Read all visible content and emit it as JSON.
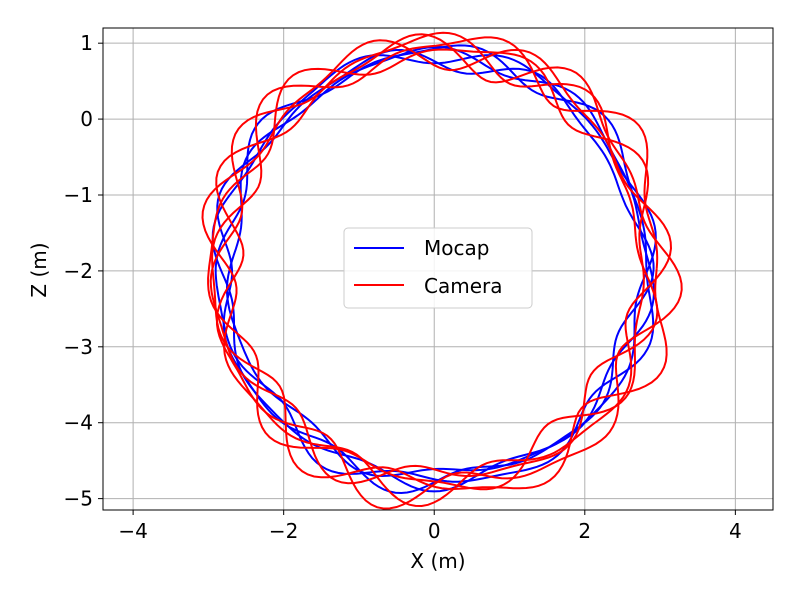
{
  "chart_data": {
    "type": "line",
    "title": "",
    "xlabel": "X (m)",
    "ylabel": "Z (m)",
    "xlim": [
      -4.4,
      4.5
    ],
    "ylim": [
      -5.15,
      1.2
    ],
    "xticks": [
      -4,
      -2,
      0,
      2,
      4
    ],
    "yticks": [
      1,
      0,
      -1,
      -2,
      -3,
      -4,
      -5
    ],
    "xtick_labels": [
      "−4",
      "−2",
      "0",
      "2",
      "4"
    ],
    "ytick_labels": [
      "1",
      "0",
      "−1",
      "−2",
      "−3",
      "−4",
      "−5"
    ],
    "grid": true,
    "legend_position": "center",
    "colors": {
      "Mocap": "#0000ff",
      "Camera": "#ff0000"
    },
    "series": [
      {
        "name": "Mocap",
        "color": "#0000ff",
        "loops": [
          {
            "cx": 0.0,
            "cz": -1.95,
            "rx": 2.85,
            "rz": 2.82,
            "wobble": 0.03,
            "phase": 0.0
          },
          {
            "cx": -0.05,
            "cz": -1.98,
            "rx": 2.8,
            "rz": 2.8,
            "wobble": 0.04,
            "phase": 1.1
          },
          {
            "cx": 0.05,
            "cz": -1.92,
            "rx": 2.78,
            "rz": 2.78,
            "wobble": 0.03,
            "phase": 2.3
          },
          {
            "cx": 0.02,
            "cz": -1.96,
            "rx": 2.86,
            "rz": 2.84,
            "wobble": 0.04,
            "phase": 3.4
          }
        ]
      },
      {
        "name": "Camera",
        "color": "#ff0000",
        "loops": [
          {
            "cx": 0.0,
            "cz": -1.95,
            "rx": 2.9,
            "rz": 2.88,
            "wobble": 0.06,
            "phase": 0.5
          },
          {
            "cx": 0.08,
            "cz": -2.0,
            "rx": 2.92,
            "rz": 2.9,
            "wobble": 0.07,
            "phase": 1.7
          },
          {
            "cx": -0.04,
            "cz": -1.9,
            "rx": 2.84,
            "rz": 2.86,
            "wobble": 0.06,
            "phase": 2.8
          },
          {
            "cx": 0.1,
            "cz": -1.97,
            "rx": 2.95,
            "rz": 2.92,
            "wobble": 0.07,
            "phase": 4.0
          },
          {
            "cx": -0.02,
            "cz": -1.94,
            "rx": 2.88,
            "rz": 2.84,
            "wobble": 0.06,
            "phase": 5.1
          }
        ]
      }
    ]
  }
}
